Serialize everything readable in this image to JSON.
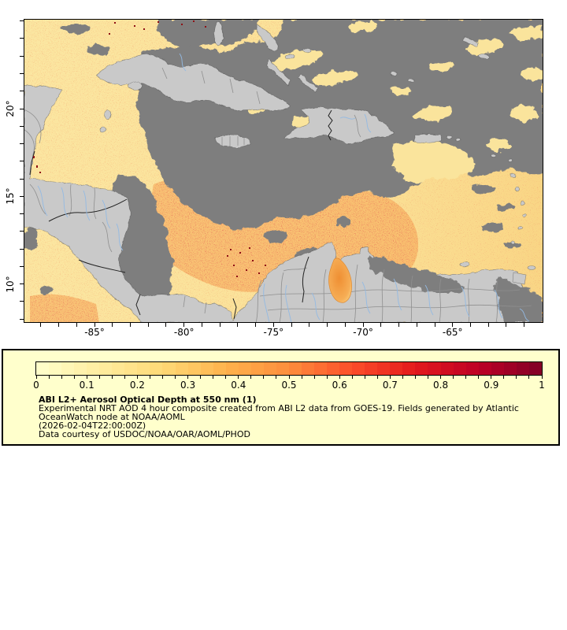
{
  "figure": {
    "background": "#FFFFFF",
    "type": "satellite aerosol optical depth composite map"
  },
  "map": {
    "region": "Gulf of Mexico, Caribbean Sea, Central America and northern South America",
    "x_axis": {
      "labels": [
        "-85°",
        "-80°",
        "-75°",
        "-70°",
        "-65°"
      ],
      "values": [
        -85,
        -80,
        -75,
        -70,
        -65
      ],
      "minor_step_deg": 1
    },
    "y_axis": {
      "labels": [
        "20°",
        "15°",
        "10°"
      ],
      "values": [
        20,
        15,
        10
      ],
      "minor_step_deg": 1
    },
    "colors": {
      "land": "#C9C9C9",
      "missing_data_cloud": "#7E7E7E",
      "aod_low": "#FBE7A2",
      "aod_mid": "#F59A3C",
      "aod_high": "#C81E14",
      "river": "#93BAE3",
      "border_gray": "#8F8F8F",
      "border_black": "#222222",
      "lake_maracaibo_aod": "#F39032"
    }
  },
  "legend": {
    "panel_bg": "#FFFFCC",
    "colorbar": {
      "min": 0,
      "max": 1,
      "segment_step": 0.025,
      "tick_step": 0.025,
      "label_step": 0.1,
      "tick_labels": [
        "0",
        "0.1",
        "0.2",
        "0.3",
        "0.4",
        "0.5",
        "0.6",
        "0.7",
        "0.8",
        "0.9",
        "1"
      ],
      "palette": [
        [
          0.0,
          "#FFFFCC"
        ],
        [
          0.125,
          "#FFEDA0"
        ],
        [
          0.25,
          "#FED976"
        ],
        [
          0.375,
          "#FEB24C"
        ],
        [
          0.5,
          "#FD8D3C"
        ],
        [
          0.625,
          "#FC4E2A"
        ],
        [
          0.75,
          "#E31A1C"
        ],
        [
          0.875,
          "#BD0026"
        ],
        [
          1.0,
          "#800026"
        ]
      ]
    },
    "title": "ABI L2+ Aerosol Optical Depth at 550 nm (1)",
    "lines": [
      "Experimental NRT AOD 4 hour composite created from ABI L2 data from GOES-19. Fields generated by Atlantic",
      "OceanWatch node at NOAA/AOML",
      "(2026-02-04T22:00:00Z)",
      "Data courtesy of USDOC/NOAA/OAR/AOML/PHOD"
    ]
  }
}
